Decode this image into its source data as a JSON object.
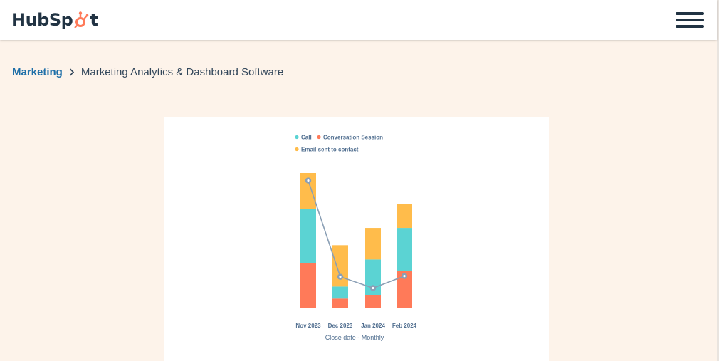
{
  "header": {
    "logo_text_left": "HubSp",
    "logo_text_right": "t",
    "menu_icon": "hamburger-icon",
    "brand_color": "#ff7a59",
    "text_color": "#213343"
  },
  "breadcrumb": {
    "link_label": "Marketing",
    "separator": ">",
    "current_label": "Marketing Analytics & Dashboard Software"
  },
  "chart_data": {
    "type": "bar",
    "stacked": true,
    "categories": [
      "Nov 2023",
      "Dec 2023",
      "Jan 2024",
      "Feb 2024"
    ],
    "series": [
      {
        "name": "Conversation Session",
        "color": "#ff7a59",
        "values": [
          60,
          13,
          18,
          50
        ]
      },
      {
        "name": "Call",
        "color": "#5bd3d3",
        "values": [
          72,
          16,
          47,
          57
        ]
      },
      {
        "name": "Email sent to contact",
        "color": "#ffbc4b",
        "values": [
          48,
          55,
          42,
          32
        ]
      }
    ],
    "line": {
      "color": "#8a9fb5",
      "values": [
        170,
        42,
        27,
        43
      ]
    },
    "xlabel": "Close date - Monthly",
    "ylim": [
      0,
      180
    ],
    "legend_position": "top"
  }
}
